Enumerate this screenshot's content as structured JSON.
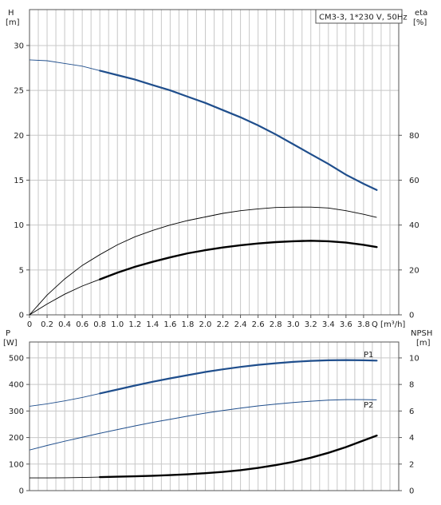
{
  "chart_data": [
    {
      "type": "line",
      "title": "CM3-3, 1*230 V, 50Hz",
      "xlabel": "Q [m³/h]",
      "xlim": [
        0,
        4.2
      ],
      "x_ticks": [
        "0",
        "0.2",
        "0.4",
        "0.6",
        "0.8",
        "1.0",
        "1.2",
        "1.4",
        "1.6",
        "1.8",
        "2.0",
        "2.2",
        "2.4",
        "2.6",
        "2.8",
        "3.0",
        "3.2",
        "3.4",
        "3.6",
        "3.8"
      ],
      "y_axis_left": {
        "label_line1": "H",
        "label_line2": "[m]",
        "lim": [
          0,
          34
        ],
        "ticks": [
          0,
          5,
          10,
          15,
          20,
          25,
          30
        ]
      },
      "y_axis_right": {
        "label_line1": "eta",
        "label_line2": "[%]",
        "lim": [
          0,
          136
        ],
        "ticks": [
          0,
          20,
          40,
          60,
          80
        ]
      },
      "grid": true,
      "series": [
        {
          "axis": "left",
          "color": "#1f4e8c",
          "width": 2.2,
          "dense_from": 0.8,
          "x": [
            0,
            0.2,
            0.4,
            0.6,
            0.8,
            1.0,
            1.2,
            1.4,
            1.6,
            1.8,
            2.0,
            2.2,
            2.4,
            2.6,
            2.8,
            3.0,
            3.2,
            3.4,
            3.6,
            3.8,
            3.95
          ],
          "y": [
            28.4,
            28.3,
            28.0,
            27.7,
            27.2,
            26.7,
            26.2,
            25.6,
            25.0,
            24.3,
            23.6,
            22.8,
            22.0,
            21.1,
            20.1,
            19.0,
            17.9,
            16.8,
            15.6,
            14.6,
            13.9
          ]
        },
        {
          "axis": "left",
          "color": "#000000",
          "width": 0.9,
          "x": [
            0,
            0.2,
            0.4,
            0.6,
            0.8,
            1.0,
            1.2,
            1.4,
            1.6,
            1.8,
            2.0,
            2.2,
            2.4,
            2.6,
            2.8,
            3.0,
            3.2,
            3.4,
            3.6,
            3.8,
            3.95
          ],
          "y": [
            0,
            2.2,
            4.0,
            5.5,
            6.7,
            7.8,
            8.7,
            9.4,
            10.0,
            10.5,
            10.9,
            11.3,
            11.6,
            11.8,
            11.95,
            12.0,
            12.0,
            11.9,
            11.6,
            11.2,
            10.85
          ]
        },
        {
          "axis": "left",
          "color": "#000000",
          "width": 2.4,
          "dense_from": 0.8,
          "x": [
            0,
            0.2,
            0.4,
            0.6,
            0.8,
            1.0,
            1.2,
            1.4,
            1.6,
            1.8,
            2.0,
            2.2,
            2.4,
            2.6,
            2.8,
            3.0,
            3.2,
            3.4,
            3.6,
            3.8,
            3.95
          ],
          "y": [
            0,
            1.2,
            2.3,
            3.2,
            3.95,
            4.7,
            5.35,
            5.9,
            6.4,
            6.85,
            7.2,
            7.5,
            7.75,
            7.95,
            8.1,
            8.2,
            8.25,
            8.2,
            8.05,
            7.8,
            7.55
          ]
        }
      ]
    },
    {
      "type": "line",
      "xlim": [
        0,
        4.2
      ],
      "y_axis_left": {
        "label_line1": "P",
        "label_line2": "[W]",
        "lim": [
          0,
          560
        ],
        "ticks": [
          0,
          100,
          200,
          300,
          400,
          500
        ]
      },
      "y_axis_right": {
        "label_line1": "NPSH",
        "label_line2": "[m]",
        "lim": [
          0,
          11.2
        ],
        "ticks": [
          0,
          2,
          4,
          6,
          8,
          10
        ]
      },
      "grid": true,
      "series": [
        {
          "name": "P1",
          "axis": "left",
          "color": "#1f4e8c",
          "width": 2.2,
          "dense_from": 0.8,
          "x": [
            0,
            0.2,
            0.4,
            0.6,
            0.8,
            1.0,
            1.2,
            1.4,
            1.6,
            1.8,
            2.0,
            2.2,
            2.4,
            2.6,
            2.8,
            3.0,
            3.2,
            3.4,
            3.6,
            3.8,
            3.95
          ],
          "y": [
            318,
            327,
            338,
            351,
            366,
            381,
            396,
            410,
            423,
            435,
            447,
            457,
            466,
            474,
            480,
            485,
            489,
            491,
            492,
            491,
            490
          ]
        },
        {
          "name": "P2",
          "axis": "left",
          "color": "#1f4e8c",
          "width": 1.0,
          "x": [
            0,
            0.2,
            0.4,
            0.6,
            0.8,
            1.0,
            1.2,
            1.4,
            1.6,
            1.8,
            2.0,
            2.2,
            2.4,
            2.6,
            2.8,
            3.0,
            3.2,
            3.4,
            3.6,
            3.8,
            3.95
          ],
          "y": [
            153,
            170,
            186,
            201,
            216,
            230,
            244,
            257,
            269,
            281,
            292,
            302,
            311,
            319,
            326,
            332,
            337,
            341,
            343,
            343,
            342
          ]
        },
        {
          "axis": "right",
          "color": "#000000",
          "width": 2.4,
          "dense_from": 0.8,
          "x": [
            0,
            0.2,
            0.4,
            0.6,
            0.8,
            1.0,
            1.2,
            1.4,
            1.6,
            1.8,
            2.0,
            2.2,
            2.4,
            2.6,
            2.8,
            3.0,
            3.2,
            3.4,
            3.6,
            3.8,
            3.95
          ],
          "y": [
            0.96,
            0.96,
            0.97,
            0.99,
            1.02,
            1.05,
            1.08,
            1.12,
            1.17,
            1.23,
            1.31,
            1.41,
            1.54,
            1.71,
            1.92,
            2.17,
            2.48,
            2.85,
            3.28,
            3.78,
            4.15
          ]
        }
      ]
    }
  ]
}
